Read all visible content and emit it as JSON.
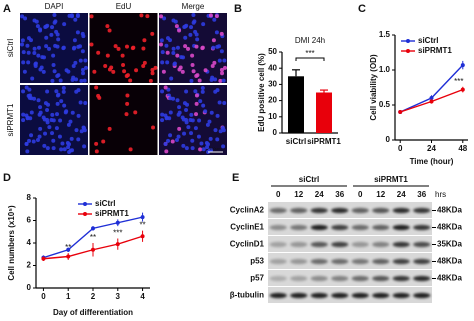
{
  "panels": {
    "a": {
      "label": "A",
      "columns": [
        "DAPI",
        "EdU",
        "Merge"
      ],
      "rows": [
        "siCtrl",
        "siPRMT1"
      ],
      "scale_bar": "100μm"
    },
    "e": {
      "label": "E",
      "groups": [
        "siCtrl",
        "siPRMT1"
      ],
      "times": [
        "0",
        "12",
        "24",
        "36",
        "0",
        "12",
        "24",
        "36"
      ],
      "time_unit": "hrs",
      "proteins": [
        {
          "name": "CyclinA2",
          "size": "48KDa"
        },
        {
          "name": "CyclinE1",
          "size": "48KDa"
        },
        {
          "name": "CyclinD1",
          "size": "35KDa"
        },
        {
          "name": "p53",
          "size": "48KDa"
        },
        {
          "name": "p57",
          "size": "48KDa"
        },
        {
          "name": "β-tubulin"
        }
      ]
    }
  },
  "chart_data": [
    {
      "type": "bar",
      "panel_label": "B",
      "title": "DMI 24h",
      "y_label": "EdU positive cell (%)",
      "categories": [
        "siCtrl",
        "siPRMT1"
      ],
      "values": [
        35,
        25
      ],
      "errors": [
        4,
        1.5
      ],
      "colors": [
        "#000000",
        "#e8000b"
      ],
      "ylim": [
        0,
        50
      ],
      "yticks": [
        0,
        10,
        20,
        30,
        40,
        50
      ],
      "annotation": "***"
    },
    {
      "type": "line",
      "panel_label": "C",
      "x_label": "Time (hour)",
      "y_label": "Cell viability (OD)",
      "x": [
        0,
        24,
        48
      ],
      "xlim": [
        -4,
        52
      ],
      "xticks": [
        0,
        24,
        48
      ],
      "ylim": [
        0,
        1.5
      ],
      "yticks": [
        0,
        0.5,
        {
          "value": 1,
          "label": "1.0"
        },
        1.5
      ],
      "legend": "upper left",
      "series": [
        {
          "name": "siCtrl",
          "color": "#1f2fd6",
          "values": [
            0.4,
            0.6,
            1.07
          ],
          "errors": [
            0.02,
            0.04,
            0.06
          ]
        },
        {
          "name": "siPRMT1",
          "color": "#e8000b",
          "values": [
            0.4,
            0.55,
            0.72
          ],
          "errors": [
            0.02,
            0.03,
            0.04
          ]
        }
      ],
      "annotations": [
        null,
        null,
        "***"
      ]
    },
    {
      "type": "line",
      "panel_label": "D",
      "x_label": "Day of differentiation",
      "y_label": "Cell numbers (x10⁵)",
      "x": [
        0,
        1,
        2,
        3,
        4
      ],
      "xlim": [
        -0.3,
        4.3
      ],
      "xticks": [
        0,
        1,
        2,
        3,
        4
      ],
      "ylim": [
        0,
        8
      ],
      "yticks": [
        0,
        2,
        4,
        6,
        8
      ],
      "legend": "upper left",
      "series": [
        {
          "name": "siCtrl",
          "color": "#1f2fd6",
          "values": [
            2.7,
            3.4,
            5.3,
            5.8,
            6.3
          ],
          "errors": [
            0.2,
            0.2,
            0.2,
            0.3,
            0.4
          ]
        },
        {
          "name": "siPRMT1",
          "color": "#e8000b",
          "values": [
            2.6,
            2.8,
            3.4,
            3.9,
            4.6
          ],
          "errors": [
            0.2,
            0.3,
            0.6,
            0.5,
            0.5
          ]
        }
      ],
      "annotations": [
        null,
        "**",
        "**",
        "***",
        "**"
      ]
    }
  ]
}
